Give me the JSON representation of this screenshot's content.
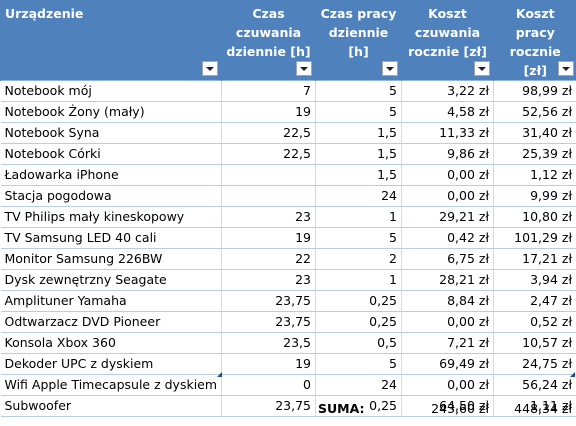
{
  "headers": [
    "Urządzenie",
    "Czas czuwania dziennie [h]",
    "Czas pracy dziennie [h]",
    "Koszt czuwania rocznie [zł]",
    "Koszt pracy rocznie [zł]"
  ],
  "rows": [
    [
      "Notebook mój",
      "7",
      "5",
      "3,22 zł",
      "98,99 zł"
    ],
    [
      "Notebook Żony (mały)",
      "19",
      "5",
      "4,58 zł",
      "52,56 zł"
    ],
    [
      "Notebook Syna",
      "22,5",
      "1,5",
      "11,33 zł",
      "31,40 zł"
    ],
    [
      "Notebook Córki",
      "22,5",
      "1,5",
      "9,86 zł",
      "25,39 zł"
    ],
    [
      "Ładowarka iPhone",
      "",
      "1,5",
      "0,00 zł",
      "1,12 zł"
    ],
    [
      "Stacja pogodowa",
      "",
      "24",
      "0,00 zł",
      "9,99 zł"
    ],
    [
      "TV Philips mały kineskopowy",
      "23",
      "1",
      "29,21 zł",
      "10,80 zł"
    ],
    [
      "TV Samsung LED 40 cali",
      "19",
      "5",
      "0,42 zł",
      "101,29 zł"
    ],
    [
      "Monitor Samsung 226BW",
      "22",
      "2",
      "6,75 zł",
      "17,21 zł"
    ],
    [
      "Dysk zewnętrzny Seagate",
      "23",
      "1",
      "28,21 zł",
      "3,94 zł"
    ],
    [
      "Amplituner Yamaha",
      "23,75",
      "0,25",
      "8,84 zł",
      "2,47 zł"
    ],
    [
      "Odtwarzacz DVD Pioneer",
      "23,75",
      "0,25",
      "0,00 zł",
      "0,52 zł"
    ],
    [
      "Konsola Xbox 360",
      "23,5",
      "0,5",
      "7,21 zł",
      "10,57 zł"
    ],
    [
      "Dekoder UPC z dyskiem",
      "19",
      "5",
      "69,49 zł",
      "24,75 zł"
    ],
    [
      "Wifi Apple Timecapsule z dyskiem",
      "0",
      "24",
      "0,00 zł",
      "56,24 zł"
    ],
    [
      "Subwoofer",
      "23,75",
      "0,25",
      "64,50 zł",
      "1,11 zł"
    ]
  ],
  "summary": {
    "label": "SUMA:",
    "standby_total": "243,60 zł",
    "work_total": "448,34 zł"
  },
  "colors": {
    "header_bg": "#4f81bd",
    "header_text": "#ffffff",
    "row_border": "#b8cce4"
  },
  "icons": {
    "filter": "filter-dropdown-icon"
  }
}
